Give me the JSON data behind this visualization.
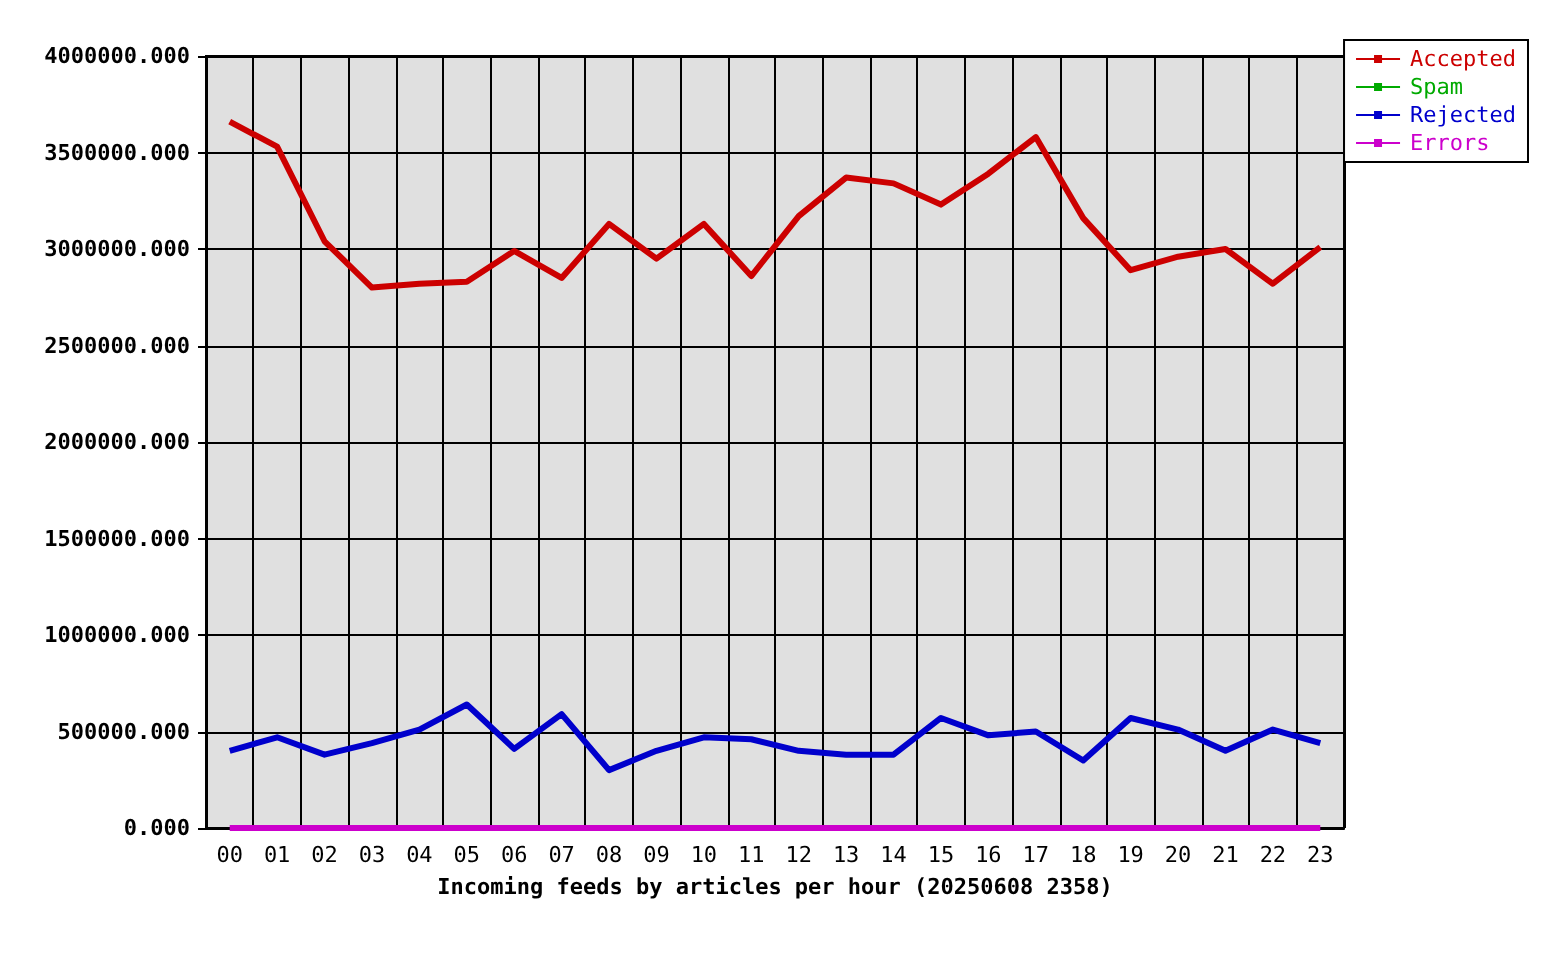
{
  "chart_data": {
    "type": "line",
    "xlabel": "Incoming feeds by articles per hour (20250608 2358)",
    "categories": [
      "00",
      "01",
      "02",
      "03",
      "04",
      "05",
      "06",
      "07",
      "08",
      "09",
      "10",
      "11",
      "12",
      "13",
      "14",
      "15",
      "16",
      "17",
      "18",
      "19",
      "20",
      "21",
      "22",
      "23"
    ],
    "ylim": [
      0,
      4000000
    ],
    "yticks": [
      {
        "value": 0,
        "label": "0.000"
      },
      {
        "value": 500000,
        "label": "500000.000"
      },
      {
        "value": 1000000,
        "label": "1000000.000"
      },
      {
        "value": 1500000,
        "label": "1500000.000"
      },
      {
        "value": 2000000,
        "label": "2000000.000"
      },
      {
        "value": 2500000,
        "label": "2500000.000"
      },
      {
        "value": 3000000,
        "label": "3000000.000"
      },
      {
        "value": 3500000,
        "label": "3500000.000"
      },
      {
        "value": 4000000,
        "label": "4000000.000"
      }
    ],
    "grid": true,
    "legend": "top right",
    "marker": "none",
    "line_style": "solid",
    "series": [
      {
        "name": "Accepted",
        "color": "#cc0000",
        "values": [
          3660000,
          3530000,
          3040000,
          2800000,
          2820000,
          2830000,
          2990000,
          2850000,
          3130000,
          2950000,
          3130000,
          2860000,
          3170000,
          3370000,
          3340000,
          3230000,
          3390000,
          3580000,
          3160000,
          2890000,
          2960000,
          3000000,
          2820000,
          3010000
        ]
      },
      {
        "name": "Spam",
        "color": "#00aa00",
        "values": [
          null,
          null,
          null,
          null,
          null,
          null,
          null,
          null,
          null,
          null,
          null,
          null,
          null,
          null,
          null,
          null,
          null,
          null,
          null,
          null,
          null,
          null,
          null,
          null
        ]
      },
      {
        "name": "Rejected",
        "color": "#0000cc",
        "values": [
          400000,
          470000,
          380000,
          440000,
          510000,
          640000,
          410000,
          590000,
          300000,
          400000,
          470000,
          460000,
          400000,
          380000,
          380000,
          570000,
          480000,
          500000,
          350000,
          570000,
          510000,
          400000,
          510000,
          440000
        ]
      },
      {
        "name": "Errors",
        "color": "#cc00cc",
        "values": [
          0,
          0,
          0,
          0,
          0,
          0,
          0,
          0,
          0,
          0,
          0,
          0,
          0,
          0,
          0,
          0,
          0,
          0,
          0,
          0,
          0,
          0,
          0,
          0
        ]
      }
    ]
  }
}
